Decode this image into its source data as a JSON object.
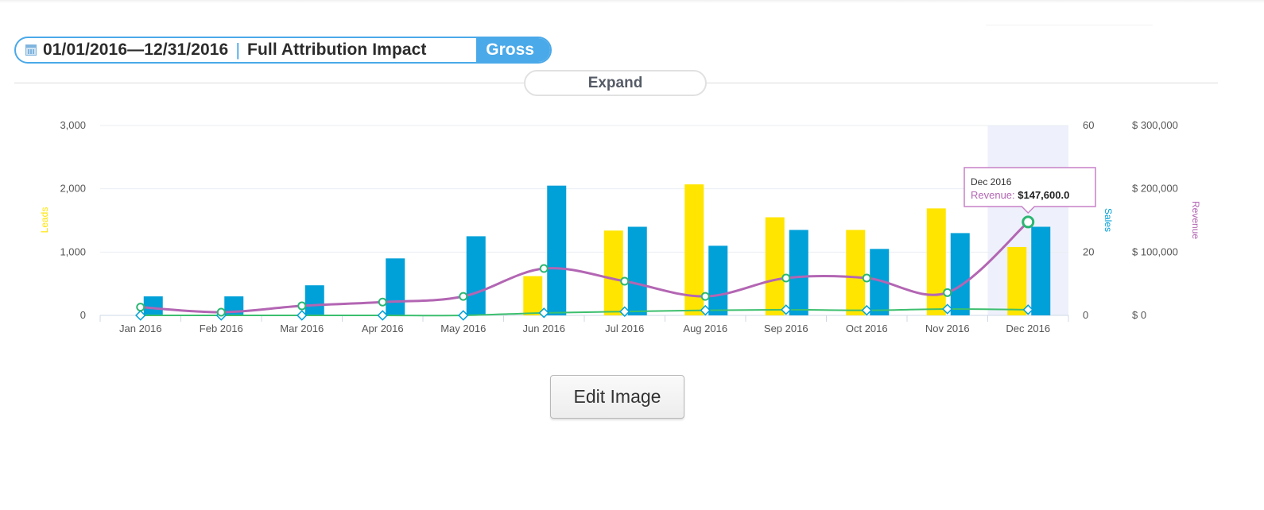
{
  "filter": {
    "date_range": "01/01/2016—12/31/2016",
    "separator": "|",
    "mode": "Full Attribution Impact",
    "gross_label": "Gross",
    "icon": "calendar-icon"
  },
  "expand_label": "Expand",
  "edit_image_label": "Edit Image",
  "colors": {
    "accent": "#4aa9e9",
    "leads": "#ffe500",
    "sales": "#00a0d8",
    "revenue": "#b366b3",
    "green_line": "#3cbf6e"
  },
  "chart_data": {
    "type": "bar",
    "categories": [
      "Jan 2016",
      "Feb 2016",
      "Mar 2016",
      "Apr 2016",
      "May 2016",
      "Jun 2016",
      "Jul 2016",
      "Aug 2016",
      "Sep 2016",
      "Oct 2016",
      "Nov 2016",
      "Dec 2016"
    ],
    "series": [
      {
        "name": "Leads",
        "axis": "left",
        "kind": "bar",
        "values": [
          0,
          0,
          0,
          0,
          0,
          620,
          1340,
          2070,
          1550,
          1350,
          1690,
          1080
        ]
      },
      {
        "name": "Sales",
        "axis": "right",
        "kind": "bar",
        "values": [
          6,
          6,
          9.5,
          18,
          25,
          41,
          28,
          22,
          27,
          21,
          26,
          28
        ]
      },
      {
        "name": "Revenue",
        "axis": "right2",
        "kind": "line",
        "values": [
          13000,
          5000,
          15000,
          21000,
          30000,
          74000,
          54000,
          30000,
          59000,
          59000,
          36000,
          147600
        ]
      },
      {
        "kind": "line",
        "axis": "left",
        "values": [
          0,
          0,
          0,
          0,
          0,
          40,
          60,
          80,
          90,
          80,
          100,
          90
        ]
      }
    ],
    "y_left": {
      "label": "Leads",
      "range": [
        0,
        3000
      ],
      "ticks": [
        "0",
        "1,000",
        "2,000",
        "3,000"
      ]
    },
    "y_right": {
      "label": "Sales",
      "range": [
        0,
        60
      ],
      "ticks": [
        "0",
        "20",
        "",
        "60"
      ]
    },
    "y_right2": {
      "label": "Revenue",
      "range": [
        0,
        300000
      ],
      "ticks": [
        "$ 0",
        "$ 100,000",
        "$ 200,000",
        "$ 300,000"
      ]
    },
    "highlight_category": "Dec 2016",
    "tooltip": {
      "title": "Dec 2016",
      "label": "Revenue:",
      "value": "$147,600.0"
    },
    "grid": true
  }
}
